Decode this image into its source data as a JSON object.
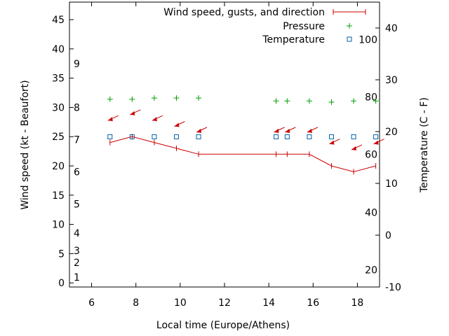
{
  "chart_data": {
    "type": "line",
    "xlabel": "Local time (Europe/Athens)",
    "ylabel_left": "Wind speed (kt - Beaufort)",
    "ylabel_right": "Temperature (C - F)",
    "xlim": [
      5,
      19
    ],
    "ylim_left": [
      -0.7,
      48
    ],
    "ylim_right": [
      -10,
      45
    ],
    "x_ticks": [
      "6",
      "8",
      "10",
      "12",
      "14",
      "16",
      "18"
    ],
    "y_left_ticks": [
      "0",
      "5",
      "10",
      "15",
      "20",
      "25",
      "30",
      "35",
      "40",
      "45"
    ],
    "y_right_ticks": [
      "-10",
      "0",
      "10",
      "20",
      "30",
      "40"
    ],
    "beaufort_labels": [
      {
        "label": "1",
        "kt": 1
      },
      {
        "label": "2",
        "kt": 3.5
      },
      {
        "label": "3",
        "kt": 5.5
      },
      {
        "label": "4",
        "kt": 8.5
      },
      {
        "label": "5",
        "kt": 13.5
      },
      {
        "label": "6",
        "kt": 19
      },
      {
        "label": "7",
        "kt": 24.5
      },
      {
        "label": "8",
        "kt": 30
      },
      {
        "label": "9",
        "kt": 37.5
      }
    ],
    "fahrenheit_labels": [
      {
        "label": "20",
        "celsius": -6.7
      },
      {
        "label": "40",
        "celsius": 4.4
      },
      {
        "label": "60",
        "celsius": 15.6
      },
      {
        "label": "80",
        "celsius": 26.7
      },
      {
        "label": "100",
        "celsius": 37.8
      }
    ],
    "legend": {
      "position": "top-right",
      "wind": "Wind speed, gusts, and direction",
      "pressure": "Pressure",
      "temperature": "Temperature"
    },
    "series": [
      {
        "name": "Wind speed, gusts, and direction",
        "color": "#cc0000",
        "x": [
          6.83,
          7.83,
          8.83,
          9.83,
          10.83,
          14.33,
          14.83,
          15.83,
          16.83,
          17.83,
          18.83
        ],
        "speed": [
          24,
          25,
          24,
          23,
          22,
          22,
          22,
          22,
          20,
          19,
          20
        ],
        "arrow_y": [
          28,
          29,
          28,
          27,
          26,
          26,
          26,
          26,
          24,
          23,
          24
        ]
      },
      {
        "name": "Pressure",
        "color": "#00a000",
        "x": [
          6.83,
          7.83,
          8.83,
          9.83,
          10.83,
          14.33,
          14.83,
          15.83,
          16.83,
          17.83,
          18.83
        ],
        "y": [
          31.4,
          31.4,
          31.6,
          31.6,
          31.6,
          31.1,
          31.1,
          31.1,
          30.9,
          31.1,
          31.1
        ]
      },
      {
        "name": "Temperature",
        "color": "#0060ad",
        "x": [
          6.83,
          7.83,
          8.83,
          9.83,
          10.83,
          14.33,
          14.83,
          15.83,
          16.83,
          17.83,
          18.83
        ],
        "y": [
          19,
          19,
          19,
          19,
          19,
          19,
          19,
          19,
          19,
          19,
          19
        ]
      }
    ]
  }
}
